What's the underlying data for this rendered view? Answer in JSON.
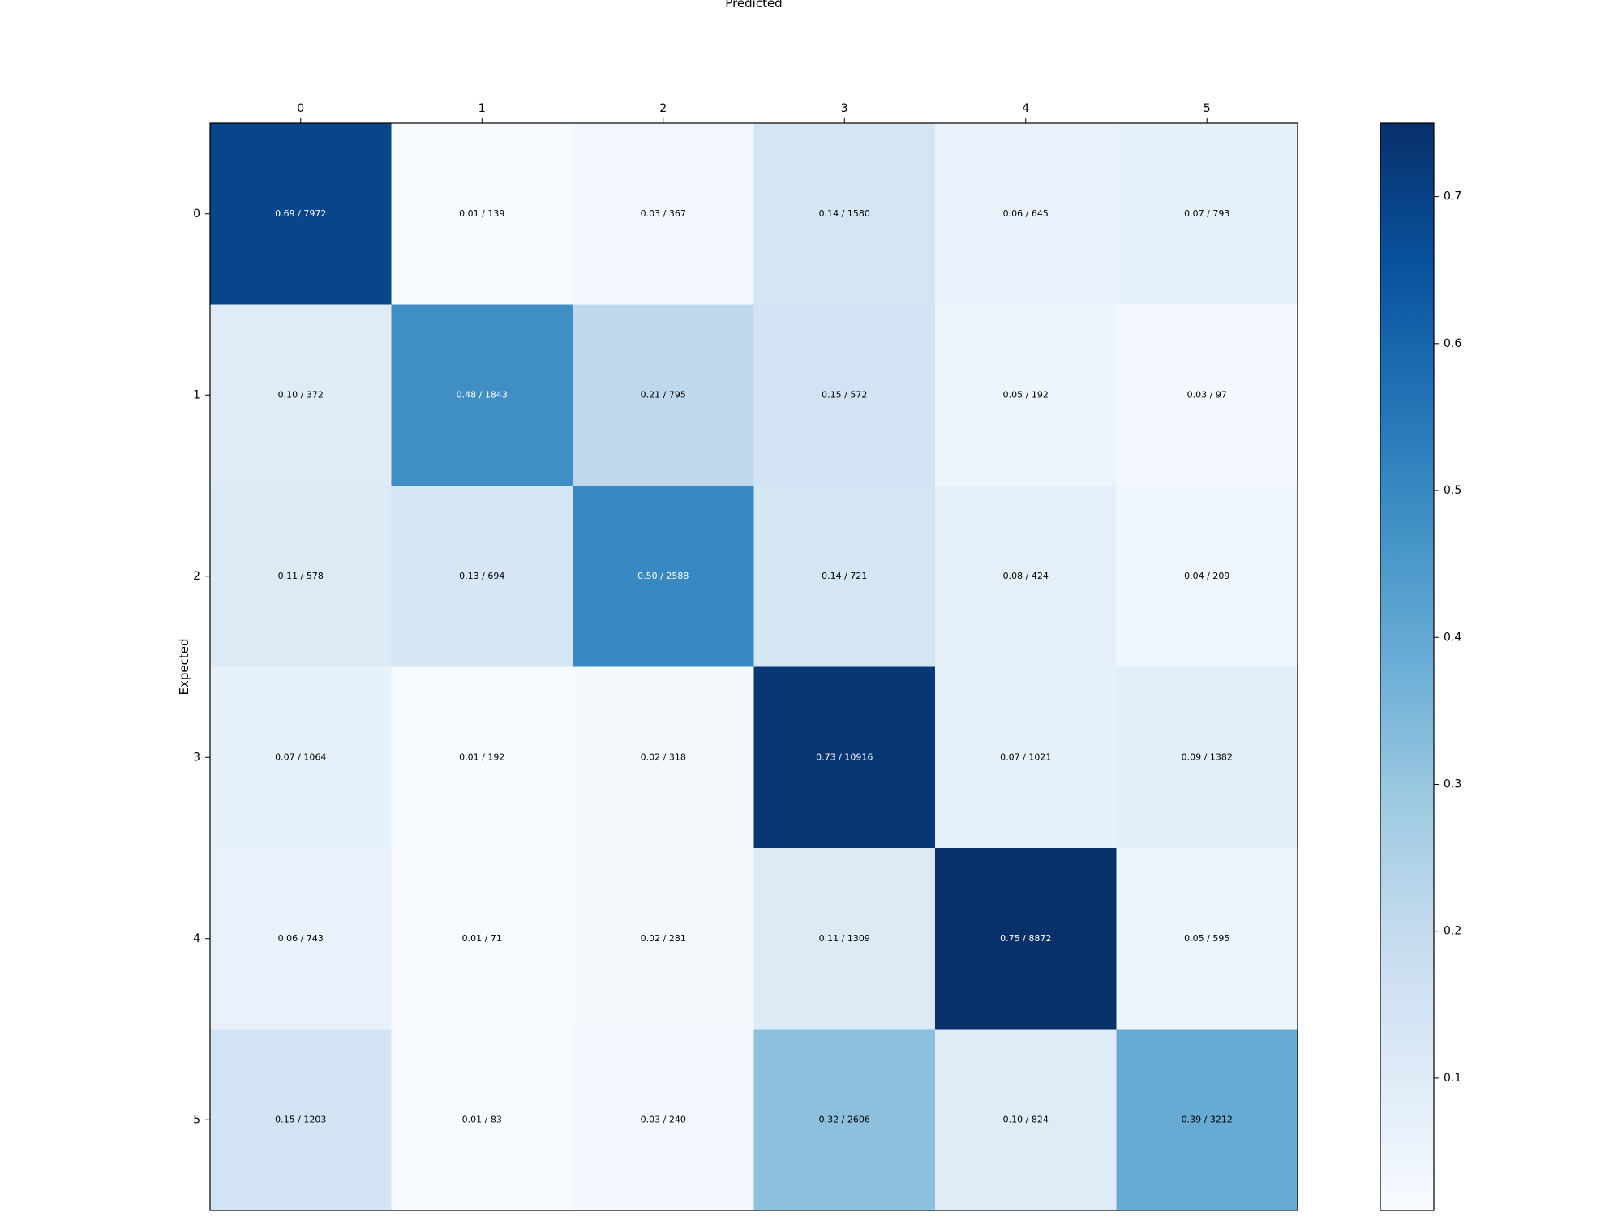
{
  "chart_data": {
    "type": "heatmap",
    "xlabel": "Predicted",
    "ylabel": "Expected",
    "x_categories": [
      "0",
      "1",
      "2",
      "3",
      "4",
      "5"
    ],
    "y_categories": [
      "0",
      "1",
      "2",
      "3",
      "4",
      "5"
    ],
    "values": [
      [
        0.69,
        0.01,
        0.03,
        0.14,
        0.06,
        0.07
      ],
      [
        0.1,
        0.48,
        0.21,
        0.15,
        0.05,
        0.03
      ],
      [
        0.11,
        0.13,
        0.5,
        0.14,
        0.08,
        0.04
      ],
      [
        0.07,
        0.01,
        0.02,
        0.73,
        0.07,
        0.09
      ],
      [
        0.06,
        0.01,
        0.02,
        0.11,
        0.75,
        0.05
      ],
      [
        0.15,
        0.01,
        0.03,
        0.32,
        0.1,
        0.39
      ]
    ],
    "cell_labels": [
      [
        "0.69 / 7972",
        "0.01 / 139",
        "0.03 / 367",
        "0.14 / 1580",
        "0.06 / 645",
        "0.07 / 793"
      ],
      [
        "0.10 / 372",
        "0.48 / 1843",
        "0.21 / 795",
        "0.15 / 572",
        "0.05 / 192",
        "0.03 / 97"
      ],
      [
        "0.11 / 578",
        "0.13 / 694",
        "0.50 / 2588",
        "0.14 / 721",
        "0.08 / 424",
        "0.04 / 209"
      ],
      [
        "0.07 / 1064",
        "0.01 / 192",
        "0.02 / 318",
        "0.73 / 10916",
        "0.07 / 1021",
        "0.09 / 1382"
      ],
      [
        "0.06 / 743",
        "0.01 / 71",
        "0.02 / 281",
        "0.11 / 1309",
        "0.75 / 8872",
        "0.05 / 595"
      ],
      [
        "0.15 / 1203",
        "0.01 / 83",
        "0.03 / 240",
        "0.32 / 2606",
        "0.10 / 824",
        "0.39 / 3212"
      ]
    ],
    "colorbar": {
      "range": [
        0.01,
        0.75
      ],
      "ticks": [
        0.1,
        0.2,
        0.3,
        0.4,
        0.5,
        0.6,
        0.7
      ],
      "tick_labels": [
        "0.1",
        "0.2",
        "0.3",
        "0.4",
        "0.5",
        "0.6",
        "0.7"
      ]
    },
    "colormap": "Blues",
    "colormap_stops": [
      "#f7fbff",
      "#deebf7",
      "#c6dbef",
      "#9ecae1",
      "#6baed6",
      "#4292c6",
      "#2171b5",
      "#08519c",
      "#08306b"
    ]
  }
}
